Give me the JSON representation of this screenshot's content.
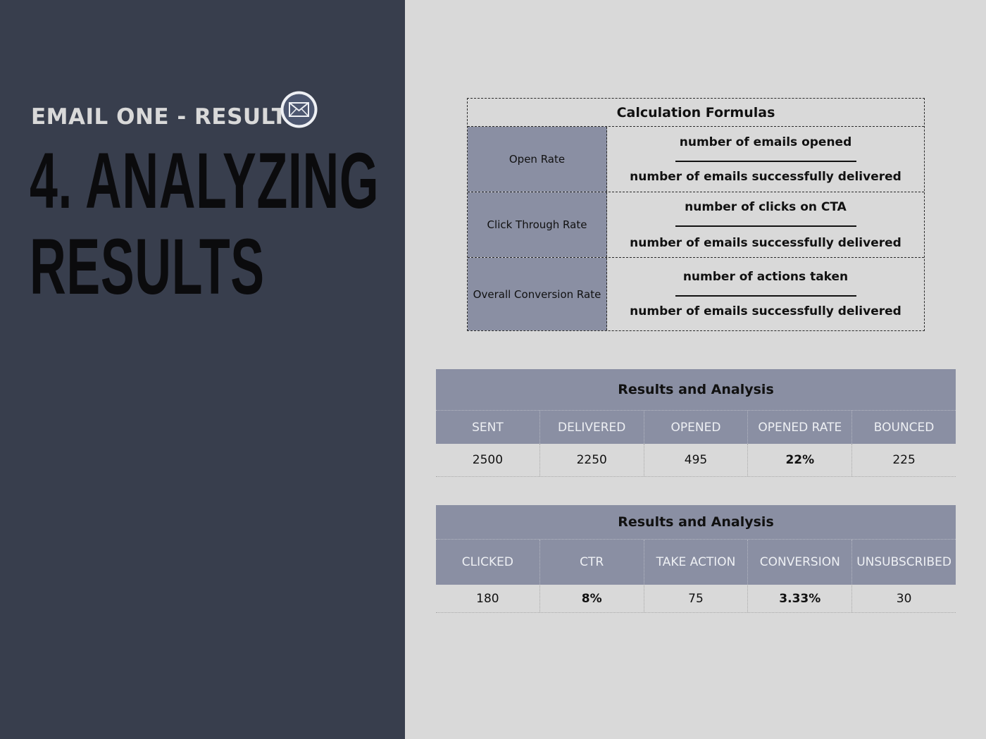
{
  "header": {
    "subtitle": "EMAIL ONE - RESULT",
    "title_line1": "4. ANALYZING",
    "title_line2": "RESULTS",
    "icon": "envelope-icon"
  },
  "formulas": {
    "title": "Calculation Formulas",
    "rows": [
      {
        "label": "Open Rate",
        "numerator": "number of emails opened",
        "denominator": "number of emails successfully delivered"
      },
      {
        "label": "Click Through Rate",
        "numerator": "number of clicks on CTA",
        "denominator": "number of emails successfully delivered"
      },
      {
        "label": "Overall Conversion Rate",
        "numerator": "number of actions taken",
        "denominator": "number of emails successfully delivered"
      }
    ]
  },
  "results1": {
    "title": "Results and Analysis",
    "headers": [
      "SENT",
      "DELIVERED",
      "OPENED",
      "OPENED RATE",
      "BOUNCED"
    ],
    "values": [
      "2500",
      "2250",
      "495",
      "22%",
      "225"
    ]
  },
  "results2": {
    "title": "Results and Analysis",
    "headers": [
      "CLICKED",
      "CTR",
      "TAKE ACTION",
      "CONVERSION",
      "UNSUBSCRIBED"
    ],
    "values": [
      "180",
      "8%",
      "75",
      "3.33%",
      "30"
    ]
  },
  "colors": {
    "left_panel": "#383e4d",
    "background": "#d9d9d9",
    "table_accent": "#8a8fa3"
  }
}
